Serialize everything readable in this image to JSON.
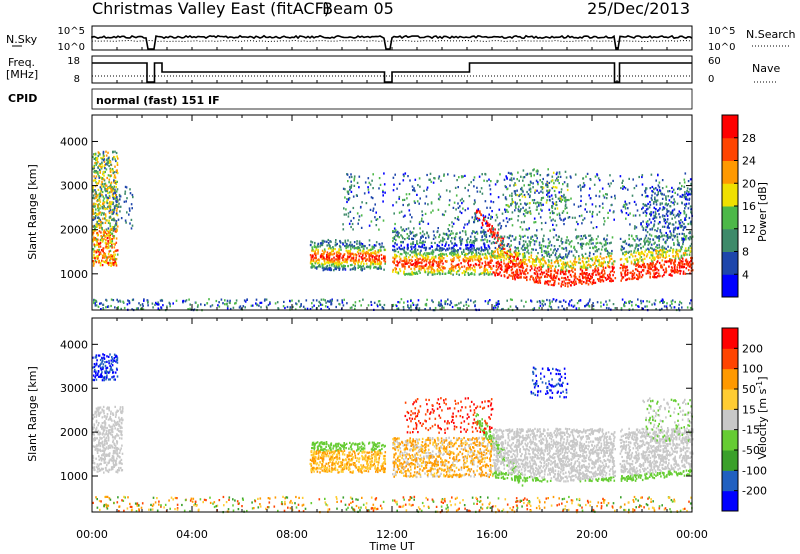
{
  "header": {
    "title": "Christmas Valley East (fitACF)",
    "beam": "Beam 05",
    "date": "25/Dec/2013"
  },
  "noise_panel": {
    "left_label": "N.Sky",
    "right_label": "N.Search",
    "left_ticks": [
      "10^5",
      "10^0"
    ],
    "right_ticks": [
      "10^5",
      "10^0"
    ]
  },
  "freq_panel": {
    "left_label_1": "Freq.",
    "left_label_2": "[MHz]",
    "right_label": "Nave",
    "left_ticks": [
      "18",
      "8"
    ],
    "right_ticks": [
      "60",
      "0"
    ]
  },
  "cpid": {
    "label": "CPID",
    "mode": "normal (fast) 151 IF"
  },
  "chart_data": [
    {
      "type": "heatmap",
      "name": "power",
      "ylabel": "Slant Range [km]",
      "xlabel": "Time UT",
      "x_ticks": [
        "00:00",
        "04:00",
        "08:00",
        "12:00",
        "16:00",
        "20:00",
        "00:00"
      ],
      "x_range_hours": [
        0,
        24
      ],
      "y_range": [
        180,
        4600
      ],
      "y_ticks": [
        1000,
        2000,
        3000,
        4000
      ],
      "colorbar": {
        "label": "Power [dB]",
        "ticks": [
          4,
          8,
          12,
          16,
          20,
          24,
          28
        ],
        "range": [
          0,
          32
        ],
        "colors": [
          "#0000ff",
          "#1e46ab",
          "#3e8a6a",
          "#4db848",
          "#f0e000",
          "#ff9900",
          "#ff4400",
          "#ff0000"
        ]
      }
    },
    {
      "type": "heatmap",
      "name": "velocity",
      "ylabel": "Slant Range [km]",
      "xlabel": "Time UT",
      "x_ticks": [
        "00:00",
        "04:00",
        "08:00",
        "12:00",
        "16:00",
        "20:00",
        "00:00"
      ],
      "x_range_hours": [
        0,
        24
      ],
      "y_range": [
        180,
        4600
      ],
      "y_ticks": [
        1000,
        2000,
        3000,
        4000
      ],
      "colorbar": {
        "label_main": "Velocity [m s",
        "label_exp": "-1",
        "label_end": "]",
        "ticks": [
          200,
          100,
          50,
          15,
          -15,
          -50,
          -100,
          -200
        ],
        "colors": [
          "#0000ff",
          "#2060c0",
          "#3aa02a",
          "#66cc33",
          "#c8c8c8",
          "#ffcc33",
          "#ff9900",
          "#ff4400",
          "#ff0000"
        ]
      }
    }
  ]
}
